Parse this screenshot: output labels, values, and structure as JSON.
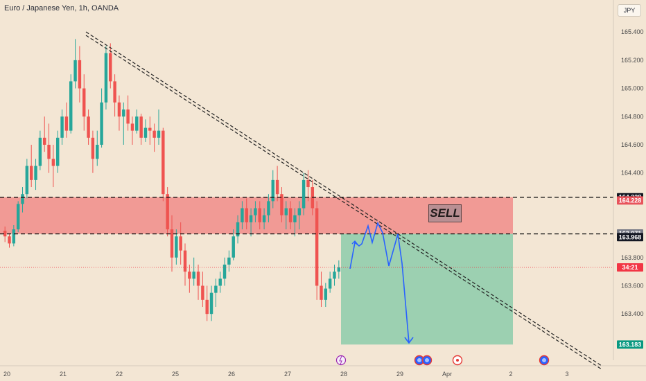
{
  "header": {
    "title": "Euro / Japanese Yen, 1h, OANDA",
    "currency_button": "JPY"
  },
  "annotation": {
    "sell_label": "SELL"
  },
  "chart_data": {
    "type": "candlestick",
    "title": "Euro / Japanese Yen, 1h, OANDA",
    "ylim": [
      163.17,
      165.45
    ],
    "y_ticks": [
      "165.400",
      "165.200",
      "165.000",
      "164.800",
      "164.600",
      "164.400",
      "163.800",
      "163.600",
      "163.400"
    ],
    "x_ticks": [
      "20",
      "21",
      "22",
      "25",
      "26",
      "27",
      "28",
      "29",
      "Apr",
      "2",
      "3"
    ],
    "price_tags": [
      {
        "label": "164.228",
        "value": 164.228,
        "color": "#131722"
      },
      {
        "label": "164.228",
        "value": 164.205,
        "color": "#e8545c"
      },
      {
        "label": "163.971",
        "value": 163.971,
        "color": "#787b86"
      },
      {
        "label": "163.968",
        "value": 163.945,
        "color": "#131722"
      },
      {
        "label": "34:21",
        "value": 163.73,
        "color": "#f23645"
      },
      {
        "label": "163.183",
        "value": 163.183,
        "color": "#089981"
      }
    ],
    "levels": [
      164.228,
      163.968
    ],
    "sell_zone": [
      163.968,
      164.228
    ],
    "target_zone": [
      163.183,
      163.968
    ],
    "colors": {
      "up": "#26a69a",
      "down": "#ef5350",
      "zone_sell": "#f08080",
      "zone_target": "#7fc8a5",
      "projection": "#2962ff"
    },
    "event_icons": [
      "lightning-icon",
      "flag-icon",
      "flag-icon",
      "target-icon",
      "flag-icon"
    ],
    "candles": [
      [
        163.99,
        164.02,
        163.91,
        163.95
      ],
      [
        163.95,
        163.97,
        163.87,
        163.9
      ],
      [
        163.9,
        164.03,
        163.88,
        164.0
      ],
      [
        164.0,
        164.2,
        163.98,
        164.18
      ],
      [
        164.18,
        164.3,
        164.12,
        164.25
      ],
      [
        164.25,
        164.5,
        164.22,
        164.45
      ],
      [
        164.45,
        164.6,
        164.3,
        164.35
      ],
      [
        164.35,
        164.5,
        164.28,
        164.45
      ],
      [
        164.45,
        164.7,
        164.42,
        164.65
      ],
      [
        164.65,
        164.8,
        164.55,
        164.6
      ],
      [
        164.6,
        164.75,
        164.4,
        164.5
      ],
      [
        164.5,
        164.6,
        164.3,
        164.45
      ],
      [
        164.45,
        164.7,
        164.4,
        164.65
      ],
      [
        164.65,
        164.85,
        164.6,
        164.8
      ],
      [
        164.8,
        164.9,
        164.65,
        164.7
      ],
      [
        164.7,
        165.1,
        164.68,
        165.05
      ],
      [
        165.05,
        165.35,
        165.0,
        165.2
      ],
      [
        165.2,
        165.3,
        164.9,
        165.0
      ],
      [
        165.0,
        165.1,
        164.7,
        164.8
      ],
      [
        164.8,
        164.85,
        164.6,
        164.65
      ],
      [
        164.65,
        164.7,
        164.4,
        164.5
      ],
      [
        164.5,
        164.7,
        164.45,
        164.6
      ],
      [
        164.6,
        165.0,
        164.58,
        164.9
      ],
      [
        164.9,
        165.3,
        164.85,
        165.25
      ],
      [
        165.25,
        165.32,
        165.0,
        165.05
      ],
      [
        165.05,
        165.1,
        164.8,
        164.9
      ],
      [
        164.9,
        164.95,
        164.7,
        164.8
      ],
      [
        164.8,
        164.9,
        164.6,
        164.85
      ],
      [
        164.85,
        164.95,
        164.7,
        164.75
      ],
      [
        164.75,
        164.8,
        164.6,
        164.7
      ],
      [
        164.7,
        164.85,
        164.68,
        164.8
      ],
      [
        164.8,
        164.82,
        164.6,
        164.65
      ],
      [
        164.65,
        164.78,
        164.62,
        164.72
      ],
      [
        164.72,
        164.8,
        164.6,
        164.7
      ],
      [
        164.7,
        164.75,
        164.55,
        164.65
      ],
      [
        164.65,
        164.85,
        164.6,
        164.7
      ],
      [
        164.7,
        164.72,
        164.2,
        164.25
      ],
      [
        164.25,
        164.3,
        163.95,
        164.0
      ],
      [
        164.0,
        164.1,
        163.7,
        163.8
      ],
      [
        163.8,
        164.0,
        163.75,
        163.95
      ],
      [
        163.95,
        164.05,
        163.75,
        163.85
      ],
      [
        163.85,
        163.9,
        163.6,
        163.7
      ],
      [
        163.7,
        163.75,
        163.55,
        163.65
      ],
      [
        163.65,
        163.8,
        163.6,
        163.7
      ],
      [
        163.7,
        163.75,
        163.5,
        163.6
      ],
      [
        163.6,
        163.7,
        163.45,
        163.5
      ],
      [
        163.5,
        163.6,
        163.35,
        163.4
      ],
      [
        163.4,
        163.6,
        163.35,
        163.55
      ],
      [
        163.55,
        163.65,
        163.45,
        163.6
      ],
      [
        163.6,
        163.7,
        163.55,
        163.65
      ],
      [
        163.65,
        163.8,
        163.6,
        163.75
      ],
      [
        163.75,
        163.85,
        163.7,
        163.8
      ],
      [
        163.8,
        164.0,
        163.78,
        163.95
      ],
      [
        163.95,
        164.1,
        163.9,
        164.05
      ],
      [
        164.05,
        164.2,
        164.0,
        164.15
      ],
      [
        164.15,
        164.22,
        164.0,
        164.05
      ],
      [
        164.05,
        164.15,
        163.95,
        164.1
      ],
      [
        164.1,
        164.2,
        164.05,
        164.15
      ],
      [
        164.15,
        164.2,
        164.0,
        164.05
      ],
      [
        164.05,
        164.15,
        164.0,
        164.1
      ],
      [
        164.1,
        164.25,
        164.05,
        164.2
      ],
      [
        164.2,
        164.42,
        164.15,
        164.35
      ],
      [
        164.35,
        164.45,
        164.2,
        164.25
      ],
      [
        164.25,
        164.3,
        164.05,
        164.1
      ],
      [
        164.1,
        164.2,
        164.0,
        164.15
      ],
      [
        164.15,
        164.2,
        164.0,
        164.05
      ],
      [
        164.05,
        164.15,
        163.95,
        164.1
      ],
      [
        164.1,
        164.2,
        164.0,
        164.15
      ],
      [
        164.15,
        164.4,
        164.1,
        164.35
      ],
      [
        164.35,
        164.42,
        164.2,
        164.3
      ],
      [
        164.3,
        164.35,
        164.1,
        164.15
      ],
      [
        164.15,
        164.2,
        163.5,
        163.6
      ],
      [
        163.6,
        163.7,
        163.45,
        163.5
      ],
      [
        163.5,
        163.62,
        163.45,
        163.58
      ],
      [
        163.58,
        163.7,
        163.55,
        163.65
      ],
      [
        163.65,
        163.75,
        163.6,
        163.7
      ],
      [
        163.7,
        163.78,
        163.65,
        163.73
      ]
    ]
  }
}
